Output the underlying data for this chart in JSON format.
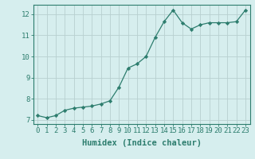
{
  "x": [
    0,
    1,
    2,
    3,
    4,
    5,
    6,
    7,
    8,
    9,
    10,
    11,
    12,
    13,
    14,
    15,
    16,
    17,
    18,
    19,
    20,
    21,
    22,
    23
  ],
  "y": [
    7.2,
    7.1,
    7.2,
    7.45,
    7.55,
    7.6,
    7.65,
    7.75,
    7.9,
    8.55,
    9.45,
    9.65,
    10.0,
    10.9,
    11.65,
    12.2,
    11.6,
    11.3,
    11.5,
    11.6,
    11.6,
    11.6,
    11.65,
    12.2
  ],
  "xlabel": "Humidex (Indice chaleur)",
  "xlim": [
    -0.5,
    23.5
  ],
  "ylim": [
    6.8,
    12.45
  ],
  "yticks": [
    7,
    8,
    9,
    10,
    11,
    12
  ],
  "xticks": [
    0,
    1,
    2,
    3,
    4,
    5,
    6,
    7,
    8,
    9,
    10,
    11,
    12,
    13,
    14,
    15,
    16,
    17,
    18,
    19,
    20,
    21,
    22,
    23
  ],
  "line_color": "#2d7d6e",
  "marker": "D",
  "marker_size": 2.2,
  "bg_color": "#d6eeee",
  "grid_color": "#b8d0d0",
  "axis_color": "#2d7d6e",
  "tick_color": "#2d7d6e",
  "label_color": "#2d7d6e",
  "xlabel_fontsize": 7.5,
  "tick_fontsize": 6.5
}
